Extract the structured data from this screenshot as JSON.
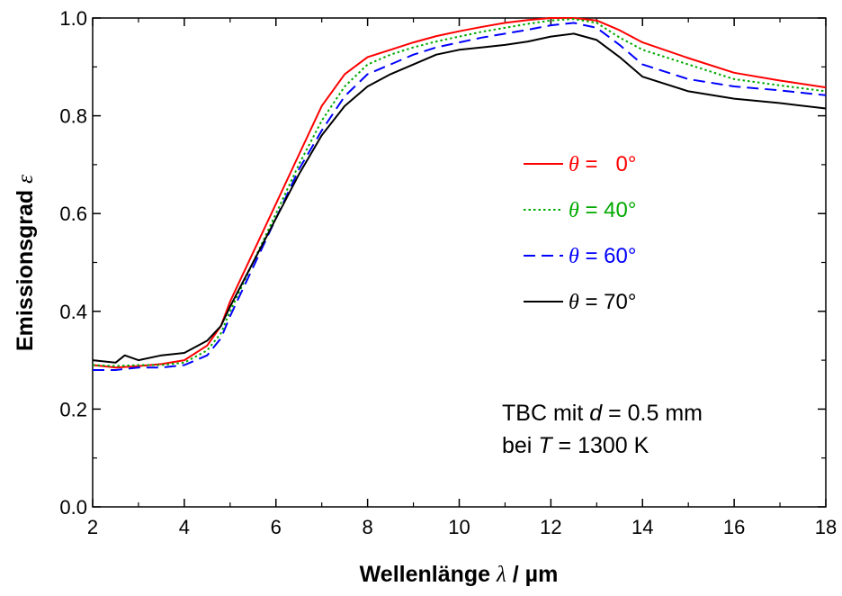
{
  "chart_data": {
    "type": "line",
    "xlabel": {
      "prefix": "Wellenlänge ",
      "symbol": "λ",
      "suffix": "  /  µm"
    },
    "ylabel": {
      "prefix": "Emissionsgrad ",
      "symbol": "ε"
    },
    "xlim": [
      2,
      18
    ],
    "ylim": [
      0.0,
      1.0
    ],
    "xticks": [
      2,
      4,
      6,
      8,
      10,
      12,
      14,
      16,
      18
    ],
    "xtick_labels": [
      "2",
      "4",
      "6",
      "8",
      "10",
      "12",
      "14",
      "16",
      "18"
    ],
    "yticks": [
      0.0,
      0.2,
      0.4,
      0.6,
      0.8,
      1.0
    ],
    "ytick_labels": [
      "0.0",
      "0.2",
      "0.4",
      "0.6",
      "0.8",
      "1.0"
    ],
    "grid": false,
    "legend_position": "right",
    "annotation": {
      "line1": {
        "prefix": "TBC mit ",
        "symbol": "d",
        "suffix": " = 0.5 mm"
      },
      "line2": {
        "prefix": "bei ",
        "symbol": "T",
        "suffix": " = 1300 K"
      }
    },
    "series": [
      {
        "name": "θ =   0°",
        "name_symbol": "θ",
        "name_rest": " =   0°",
        "color": "#ff0000",
        "style": "solid",
        "x": [
          2.0,
          2.5,
          3.0,
          3.5,
          4.0,
          4.5,
          4.8,
          5.0,
          5.5,
          6.0,
          6.5,
          7.0,
          7.5,
          8.0,
          8.5,
          9.0,
          9.5,
          10.0,
          10.5,
          11.0,
          11.5,
          12.0,
          12.5,
          13.0,
          13.5,
          14.0,
          15.0,
          16.0,
          17.0,
          18.0
        ],
        "y": [
          0.29,
          0.285,
          0.288,
          0.292,
          0.3,
          0.33,
          0.37,
          0.42,
          0.52,
          0.62,
          0.72,
          0.82,
          0.885,
          0.92,
          0.935,
          0.95,
          0.963,
          0.973,
          0.982,
          0.99,
          0.996,
          1.0,
          1.0,
          0.995,
          0.975,
          0.95,
          0.918,
          0.888,
          0.872,
          0.858
        ]
      },
      {
        "name": "θ = 40°",
        "name_symbol": "θ",
        "name_rest": " = 40°",
        "color": "#00aa00",
        "style": "dotted",
        "x": [
          2.0,
          2.5,
          3.0,
          3.5,
          4.0,
          4.5,
          4.8,
          5.0,
          5.5,
          6.0,
          6.5,
          7.0,
          7.5,
          8.0,
          8.5,
          9.0,
          9.5,
          10.0,
          10.5,
          11.0,
          11.5,
          12.0,
          12.5,
          13.0,
          13.5,
          14.0,
          15.0,
          16.0,
          17.0,
          18.0
        ],
        "y": [
          0.29,
          0.288,
          0.29,
          0.29,
          0.295,
          0.32,
          0.355,
          0.4,
          0.5,
          0.6,
          0.7,
          0.79,
          0.86,
          0.905,
          0.925,
          0.94,
          0.952,
          0.962,
          0.972,
          0.98,
          0.988,
          0.995,
          0.998,
          0.99,
          0.96,
          0.935,
          0.905,
          0.875,
          0.862,
          0.85
        ]
      },
      {
        "name": "θ = 60°",
        "name_symbol": "θ",
        "name_rest": " = 60°",
        "color": "#0000ff",
        "style": "dashed",
        "x": [
          2.0,
          2.5,
          3.0,
          3.5,
          4.0,
          4.5,
          4.8,
          5.0,
          5.5,
          6.0,
          6.5,
          7.0,
          7.5,
          8.0,
          8.5,
          9.0,
          9.5,
          10.0,
          10.5,
          11.0,
          11.5,
          12.0,
          12.5,
          13.0,
          13.5,
          14.0,
          15.0,
          16.0,
          17.0,
          18.0
        ],
        "y": [
          0.28,
          0.28,
          0.285,
          0.285,
          0.29,
          0.31,
          0.345,
          0.39,
          0.49,
          0.59,
          0.69,
          0.77,
          0.84,
          0.885,
          0.905,
          0.925,
          0.94,
          0.95,
          0.96,
          0.968,
          0.976,
          0.985,
          0.99,
          0.98,
          0.945,
          0.905,
          0.875,
          0.86,
          0.852,
          0.842
        ]
      },
      {
        "name": "θ = 70°",
        "name_symbol": "θ",
        "name_rest": " = 70°",
        "color": "#000000",
        "style": "solid",
        "x": [
          2.0,
          2.5,
          2.7,
          3.0,
          3.5,
          4.0,
          4.5,
          4.8,
          5.0,
          5.5,
          6.0,
          6.5,
          7.0,
          7.5,
          8.0,
          8.5,
          9.0,
          9.5,
          10.0,
          10.5,
          11.0,
          11.5,
          12.0,
          12.5,
          13.0,
          13.5,
          14.0,
          15.0,
          16.0,
          17.0,
          18.0
        ],
        "y": [
          0.3,
          0.295,
          0.31,
          0.3,
          0.31,
          0.315,
          0.34,
          0.37,
          0.41,
          0.5,
          0.59,
          0.68,
          0.76,
          0.82,
          0.86,
          0.885,
          0.905,
          0.925,
          0.935,
          0.94,
          0.945,
          0.952,
          0.962,
          0.968,
          0.955,
          0.92,
          0.88,
          0.85,
          0.835,
          0.826,
          0.815
        ]
      }
    ]
  }
}
